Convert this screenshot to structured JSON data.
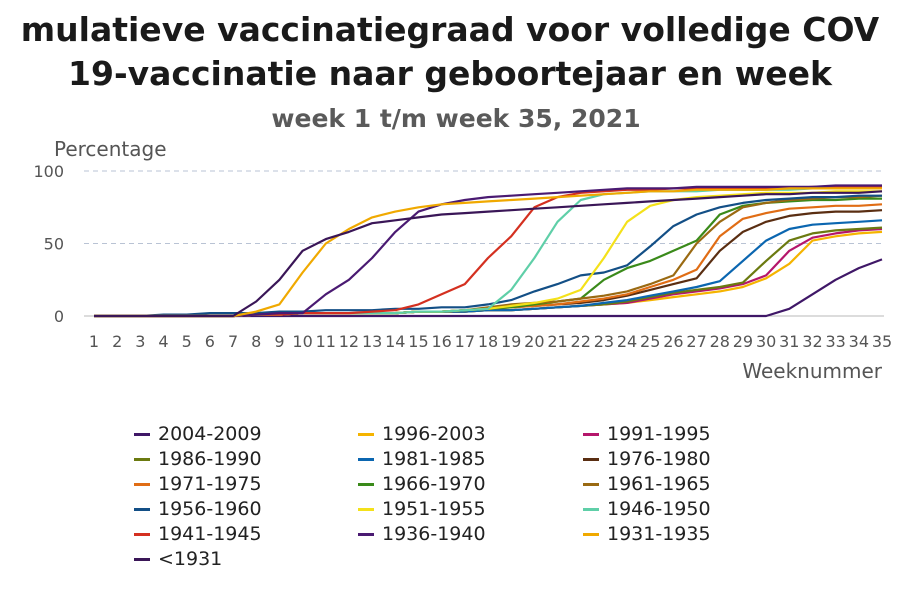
{
  "header": {
    "title_line1": "mulatieve vaccinatiegraad voor volledige COV",
    "title_line2": "19-vaccinatie naar geboortejaar en week",
    "subtitle": "week 1 t/m week 35, 2021"
  },
  "chart_data": {
    "type": "line",
    "ylabel": "Percentage",
    "xlabel": "Weeknummer",
    "ylim": [
      0,
      100
    ],
    "yticks": [
      0,
      50,
      100
    ],
    "grid": "horizontal dashed",
    "legend_position": "bottom",
    "x": [
      1,
      2,
      3,
      4,
      5,
      6,
      7,
      8,
      9,
      10,
      11,
      12,
      13,
      14,
      15,
      16,
      17,
      18,
      19,
      20,
      21,
      22,
      23,
      24,
      25,
      26,
      27,
      28,
      29,
      30,
      31,
      32,
      33,
      34,
      35
    ],
    "x_tick_labels": [
      "1",
      "2",
      "3",
      "4",
      "5",
      "6",
      "7",
      "8",
      "9",
      "10",
      "11",
      "12",
      "13",
      "14",
      "15",
      "16",
      "17",
      "18",
      "19",
      "20",
      "21",
      "22",
      "23",
      "24",
      "25",
      "26",
      "27",
      "28",
      "29",
      "30",
      "31",
      "32",
      "33",
      "34",
      "35"
    ],
    "series": [
      {
        "name": "2004-2009",
        "color": "#3f1767",
        "values": [
          0,
          0,
          0,
          0,
          0,
          0,
          0,
          0,
          0,
          0,
          0,
          0,
          0,
          0,
          0,
          0,
          0,
          0,
          0,
          0,
          0,
          0,
          0,
          0,
          0,
          0,
          0,
          0,
          0,
          0,
          5,
          15,
          25,
          33,
          39
        ]
      },
      {
        "name": "1996-2003",
        "color": "#f5b400",
        "values": [
          0,
          0,
          0,
          0,
          0,
          0,
          0,
          1,
          1,
          2,
          2,
          2,
          2,
          2,
          3,
          3,
          3,
          4,
          4,
          5,
          6,
          7,
          8,
          9,
          11,
          13,
          15,
          17,
          20,
          26,
          36,
          52,
          55,
          57,
          58
        ]
      },
      {
        "name": "1991-1995",
        "color": "#b5166b",
        "values": [
          0,
          0,
          0,
          0,
          0,
          0,
          0,
          1,
          1,
          2,
          2,
          2,
          2,
          2,
          3,
          3,
          3,
          4,
          4,
          5,
          6,
          7,
          8,
          9,
          12,
          15,
          17,
          19,
          22,
          28,
          45,
          54,
          57,
          59,
          60
        ]
      },
      {
        "name": "1986-1990",
        "color": "#6b7a10",
        "values": [
          0,
          0,
          0,
          0,
          0,
          0,
          0,
          1,
          1,
          2,
          2,
          2,
          2,
          2,
          3,
          3,
          3,
          4,
          4,
          5,
          6,
          7,
          8,
          10,
          13,
          16,
          18,
          20,
          23,
          38,
          52,
          57,
          59,
          60,
          61
        ]
      },
      {
        "name": "1981-1985",
        "color": "#0b66b0",
        "values": [
          0,
          0,
          0,
          0,
          0,
          0,
          0,
          1,
          1,
          2,
          2,
          2,
          2,
          2,
          3,
          3,
          3,
          4,
          4,
          5,
          6,
          7,
          9,
          11,
          14,
          17,
          20,
          24,
          38,
          52,
          60,
          63,
          64,
          65,
          66
        ]
      },
      {
        "name": "1976-1980",
        "color": "#5a2e12",
        "values": [
          0,
          0,
          0,
          0,
          0,
          0,
          0,
          1,
          1,
          2,
          2,
          2,
          2,
          2,
          3,
          3,
          4,
          5,
          6,
          7,
          8,
          9,
          11,
          14,
          18,
          22,
          26,
          45,
          58,
          65,
          69,
          71,
          72,
          72,
          73
        ]
      },
      {
        "name": "1971-1975",
        "color": "#e06d15",
        "values": [
          0,
          0,
          0,
          0,
          0,
          0,
          0,
          1,
          1,
          2,
          2,
          2,
          2,
          2,
          3,
          3,
          4,
          5,
          6,
          7,
          8,
          10,
          12,
          15,
          20,
          25,
          32,
          55,
          67,
          71,
          74,
          75,
          76,
          76,
          77
        ]
      },
      {
        "name": "1966-1970",
        "color": "#3a8a1a",
        "values": [
          0,
          0,
          0,
          0,
          0,
          0,
          0,
          1,
          1,
          2,
          2,
          2,
          2,
          2,
          3,
          3,
          4,
          5,
          6,
          8,
          10,
          12,
          25,
          33,
          38,
          45,
          52,
          70,
          76,
          78,
          79,
          80,
          80,
          81,
          81
        ]
      },
      {
        "name": "1961-1965",
        "color": "#9a6a12",
        "values": [
          0,
          0,
          0,
          0,
          0,
          0,
          0,
          1,
          1,
          2,
          2,
          2,
          2,
          2,
          3,
          3,
          4,
          6,
          8,
          9,
          10,
          12,
          14,
          17,
          22,
          28,
          50,
          65,
          75,
          78,
          80,
          81,
          82,
          82,
          83
        ]
      },
      {
        "name": "1956-1960",
        "color": "#134f86",
        "values": [
          0,
          0,
          0,
          1,
          1,
          2,
          2,
          2,
          3,
          3,
          4,
          4,
          4,
          5,
          5,
          6,
          6,
          8,
          11,
          17,
          22,
          28,
          30,
          35,
          48,
          62,
          70,
          75,
          78,
          80,
          81,
          82,
          82,
          83,
          83
        ]
      },
      {
        "name": "1951-1955",
        "color": "#f4e11a",
        "values": [
          0,
          0,
          0,
          0,
          0,
          0,
          0,
          1,
          1,
          2,
          2,
          2,
          2,
          2,
          3,
          3,
          4,
          5,
          7,
          9,
          12,
          18,
          40,
          65,
          76,
          80,
          82,
          83,
          84,
          85,
          85,
          85,
          86,
          86,
          86
        ]
      },
      {
        "name": "1946-1950",
        "color": "#5fcfa8",
        "values": [
          0,
          0,
          0,
          0,
          0,
          0,
          0,
          1,
          1,
          2,
          2,
          2,
          2,
          2,
          3,
          3,
          4,
          5,
          18,
          40,
          65,
          80,
          84,
          85,
          86,
          86,
          86,
          87,
          87,
          87,
          87,
          88,
          88,
          88,
          88
        ]
      },
      {
        "name": "1941-1945",
        "color": "#d43020",
        "values": [
          0,
          0,
          0,
          0,
          0,
          0,
          0,
          1,
          1,
          2,
          2,
          2,
          3,
          4,
          8,
          15,
          22,
          40,
          55,
          75,
          82,
          85,
          86,
          87,
          87,
          88,
          88,
          88,
          88,
          88,
          88,
          89,
          89,
          89,
          89
        ]
      },
      {
        "name": "1936-1940",
        "color": "#4a1a72",
        "values": [
          0,
          0,
          0,
          0,
          0,
          0,
          0,
          1,
          2,
          2,
          15,
          25,
          40,
          58,
          72,
          77,
          80,
          82,
          83,
          84,
          85,
          86,
          87,
          88,
          88,
          88,
          89,
          89,
          89,
          89,
          89,
          89,
          90,
          90,
          90
        ]
      },
      {
        "name": "1931-1935",
        "color": "#f0a900",
        "values": [
          0,
          0,
          0,
          0,
          0,
          0,
          0,
          3,
          8,
          30,
          50,
          60,
          68,
          72,
          75,
          77,
          78,
          79,
          80,
          81,
          82,
          83,
          84,
          85,
          86,
          86,
          87,
          87,
          87,
          87,
          88,
          88,
          88,
          88,
          88
        ]
      },
      {
        "name": "<1931",
        "color": "#3a1657",
        "values": [
          0,
          0,
          0,
          0,
          0,
          0,
          0,
          10,
          25,
          45,
          53,
          58,
          64,
          66,
          68,
          70,
          71,
          72,
          73,
          74,
          75,
          76,
          77,
          78,
          79,
          80,
          81,
          82,
          83,
          84,
          84,
          85,
          85,
          85,
          86
        ]
      }
    ]
  }
}
